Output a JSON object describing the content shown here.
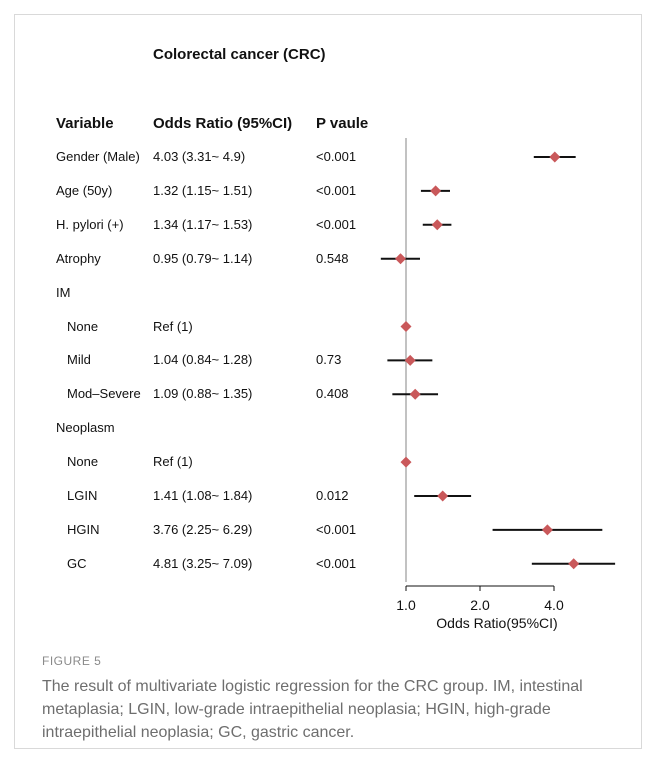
{
  "figure": {
    "label": "FIGURE 5",
    "caption": "The result of multivariate logistic regression for the CRC group. IM, intestinal metaplasia; LGIN, low-grade intraepithelial neoplasia; HGIN, high-grade intraepithelial neoplasia; GC, gastric cancer."
  },
  "table_headers": {
    "variable": "Variable",
    "or": "Odds Ratio (95%CI)",
    "p": "P vaule"
  },
  "chart_data": {
    "type": "forest",
    "title": "Colorectal cancer (CRC)",
    "xlabel": "Odds Ratio(95%CI)",
    "x_scale": "log2",
    "xlim": [
      0.78,
      7.6
    ],
    "xticks": [
      1.0,
      2.0,
      4.0
    ],
    "xtick_labels": [
      "1.0",
      "2.0",
      "4.0"
    ],
    "reference_line": 1.0,
    "marker_color": "#c9585a",
    "rows": [
      {
        "label": "Gender (Male)",
        "indent": false,
        "or_text": "4.03 (3.31~ 4.9)",
        "p": "<0.001",
        "or": 4.03,
        "lo": 3.31,
        "hi": 4.9
      },
      {
        "label": "Age (50y)",
        "indent": false,
        "or_text": "1.32 (1.15~ 1.51)",
        "p": "<0.001",
        "or": 1.32,
        "lo": 1.15,
        "hi": 1.51
      },
      {
        "label": "H. pylori (+)",
        "indent": false,
        "or_text": "1.34 (1.17~ 1.53)",
        "p": "<0.001",
        "or": 1.34,
        "lo": 1.17,
        "hi": 1.53
      },
      {
        "label": "Atrophy",
        "indent": false,
        "or_text": "0.95 (0.79~ 1.14)",
        "p": "0.548",
        "or": 0.95,
        "lo": 0.79,
        "hi": 1.14
      },
      {
        "label": "IM",
        "indent": false,
        "or_text": "",
        "p": "",
        "or": null,
        "lo": null,
        "hi": null
      },
      {
        "label": "None",
        "indent": true,
        "or_text": "Ref (1)",
        "p": "",
        "or": 1.0,
        "lo": null,
        "hi": null
      },
      {
        "label": "Mild",
        "indent": true,
        "or_text": "1.04 (0.84~ 1.28)",
        "p": "0.73",
        "or": 1.04,
        "lo": 0.84,
        "hi": 1.28
      },
      {
        "label": "Mod–Severe",
        "indent": true,
        "or_text": "1.09 (0.88~ 1.35)",
        "p": "0.408",
        "or": 1.09,
        "lo": 0.88,
        "hi": 1.35
      },
      {
        "label": "Neoplasm",
        "indent": false,
        "or_text": "",
        "p": "",
        "or": null,
        "lo": null,
        "hi": null
      },
      {
        "label": "None",
        "indent": true,
        "or_text": "Ref (1)",
        "p": "",
        "or": 1.0,
        "lo": null,
        "hi": null
      },
      {
        "label": "LGIN",
        "indent": true,
        "or_text": "1.41 (1.08~ 1.84)",
        "p": "0.012",
        "or": 1.41,
        "lo": 1.08,
        "hi": 1.84
      },
      {
        "label": "HGIN",
        "indent": true,
        "or_text": "3.76 (2.25~ 6.29)",
        "p": "<0.001",
        "or": 3.76,
        "lo": 2.25,
        "hi": 6.29
      },
      {
        "label": "GC",
        "indent": true,
        "or_text": "4.81 (3.25~ 7.09)",
        "p": "<0.001",
        "or": 4.81,
        "lo": 3.25,
        "hi": 7.09
      }
    ]
  }
}
